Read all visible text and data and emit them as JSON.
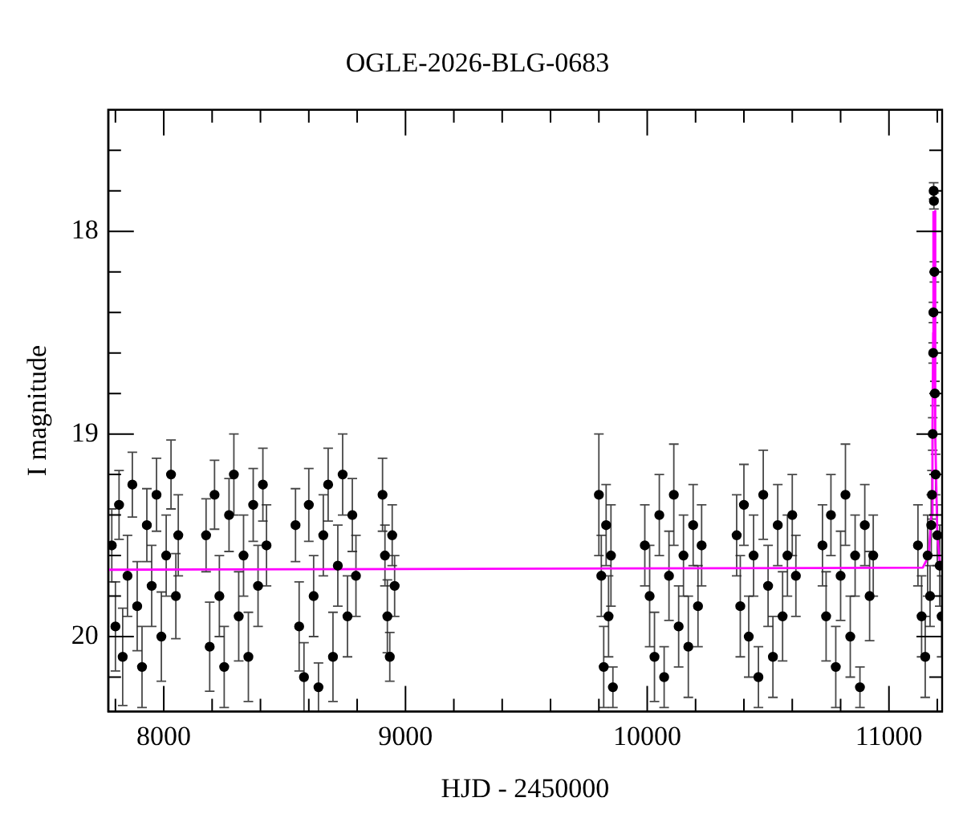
{
  "chart_data": {
    "type": "scatter",
    "title": "OGLE-2026-BLG-0683",
    "xlabel": "HJD - 2450000",
    "ylabel": "I magnitude",
    "xlim": [
      7770,
      11220
    ],
    "ylim": [
      20.37,
      17.4
    ],
    "xticks": [
      {
        "value": 7800,
        "label": null
      },
      8000,
      {
        "value": 8200,
        "label": null
      },
      {
        "value": 8400,
        "label": null
      },
      {
        "value": 8600,
        "label": null
      },
      {
        "value": 8800,
        "label": null
      },
      9000,
      {
        "value": 9200,
        "label": null
      },
      {
        "value": 9400,
        "label": null
      },
      {
        "value": 9600,
        "label": null
      },
      {
        "value": 9800,
        "label": null
      },
      10000,
      {
        "value": 10200,
        "label": null
      },
      {
        "value": 10400,
        "label": null
      },
      {
        "value": 10600,
        "label": null
      },
      {
        "value": 10800,
        "label": null
      },
      11000,
      {
        "value": 11200,
        "label": null
      }
    ],
    "yticks": [
      {
        "value": 17.6,
        "label": null
      },
      {
        "value": 17.8,
        "label": null
      },
      18,
      {
        "value": 18.2,
        "label": null
      },
      {
        "value": 18.4,
        "label": null
      },
      {
        "value": 18.6,
        "label": null
      },
      {
        "value": 18.8,
        "label": null
      },
      19,
      {
        "value": 19.2,
        "label": null
      },
      {
        "value": 19.4,
        "label": null
      },
      {
        "value": 19.6,
        "label": null
      },
      {
        "value": 19.8,
        "label": null
      },
      20,
      {
        "value": 20.2,
        "label": null
      }
    ],
    "series": [
      {
        "type": "scatter",
        "color": "#000000",
        "marker": "circle",
        "x": [
          7785,
          7800,
          7815,
          7830,
          7850,
          7870,
          7890,
          7910,
          7930,
          7950,
          7970,
          7990,
          8010,
          8030,
          8050,
          8060,
          8175,
          8190,
          8210,
          8230,
          8250,
          8270,
          8290,
          8310,
          8330,
          8350,
          8370,
          8390,
          8410,
          8425,
          8545,
          8560,
          8580,
          8600,
          8620,
          8640,
          8660,
          8680,
          8700,
          8720,
          8740,
          8760,
          8780,
          8795,
          8905,
          8915,
          8925,
          8935,
          8945,
          8955,
          9800,
          9810,
          9820,
          9830,
          9840,
          9850,
          9858,
          9990,
          10010,
          10030,
          10050,
          10070,
          10090,
          10110,
          10130,
          10150,
          10170,
          10190,
          10210,
          10225,
          10370,
          10385,
          10400,
          10420,
          10440,
          10460,
          10480,
          10500,
          10520,
          10540,
          10560,
          10580,
          10600,
          10615,
          10725,
          10740,
          10760,
          10780,
          10800,
          10820,
          10840,
          10860,
          10880,
          10900,
          10920,
          10935,
          11120,
          11135,
          11150,
          11160,
          11170,
          11175,
          11178,
          11181,
          11183,
          11184,
          11185,
          11186,
          11188,
          11190,
          11193,
          11200,
          11210,
          11218
        ],
        "values": [
          19.55,
          19.95,
          19.35,
          20.1,
          19.7,
          19.25,
          19.85,
          20.15,
          19.45,
          19.75,
          19.3,
          20.0,
          19.6,
          19.2,
          19.8,
          19.5,
          19.5,
          20.05,
          19.3,
          19.8,
          20.15,
          19.4,
          19.2,
          19.9,
          19.6,
          20.1,
          19.35,
          19.75,
          19.25,
          19.55,
          19.45,
          19.95,
          20.2,
          19.35,
          19.8,
          20.25,
          19.5,
          19.25,
          20.1,
          19.65,
          19.2,
          19.9,
          19.4,
          19.7,
          19.3,
          19.6,
          19.9,
          20.1,
          19.5,
          19.75,
          19.3,
          19.7,
          20.15,
          19.45,
          19.9,
          19.6,
          20.25,
          19.55,
          19.8,
          20.1,
          19.4,
          20.2,
          19.7,
          19.3,
          19.95,
          19.6,
          20.05,
          19.45,
          19.85,
          19.55,
          19.5,
          19.85,
          19.35,
          20.0,
          19.6,
          20.2,
          19.3,
          19.75,
          20.1,
          19.45,
          19.9,
          19.6,
          19.4,
          19.7,
          19.55,
          19.9,
          19.4,
          20.15,
          19.7,
          19.3,
          20.0,
          19.6,
          20.25,
          19.45,
          19.8,
          19.6,
          19.55,
          19.9,
          20.1,
          19.6,
          19.8,
          19.45,
          19.3,
          19.0,
          18.6,
          18.4,
          17.8,
          17.85,
          18.2,
          18.8,
          19.2,
          19.5,
          19.65,
          19.9
        ],
        "errors": [
          0.18,
          0.22,
          0.17,
          0.24,
          0.2,
          0.16,
          0.22,
          0.2,
          0.18,
          0.2,
          0.18,
          0.22,
          0.2,
          0.17,
          0.21,
          0.2,
          0.18,
          0.22,
          0.17,
          0.2,
          0.2,
          0.18,
          0.2,
          0.22,
          0.2,
          0.22,
          0.18,
          0.2,
          0.18,
          0.2,
          0.18,
          0.22,
          0.17,
          0.18,
          0.2,
          0.12,
          0.2,
          0.18,
          0.22,
          0.2,
          0.2,
          0.2,
          0.18,
          0.2,
          0.18,
          0.15,
          0.18,
          0.12,
          0.15,
          0.15,
          0.3,
          0.2,
          0.2,
          0.2,
          0.2,
          0.25,
          0.1,
          0.2,
          0.25,
          0.22,
          0.2,
          0.15,
          0.22,
          0.25,
          0.2,
          0.2,
          0.25,
          0.2,
          0.2,
          0.2,
          0.2,
          0.25,
          0.2,
          0.2,
          0.2,
          0.15,
          0.22,
          0.2,
          0.2,
          0.2,
          0.22,
          0.2,
          0.2,
          0.2,
          0.2,
          0.22,
          0.2,
          0.2,
          0.22,
          0.25,
          0.2,
          0.2,
          0.1,
          0.2,
          0.22,
          0.2,
          0.2,
          0.2,
          0.2,
          0.2,
          0.15,
          0.15,
          0.12,
          0.08,
          0.05,
          0.05,
          0.04,
          0.04,
          0.05,
          0.06,
          0.1,
          0.15,
          0.2,
          0.2
        ]
      },
      {
        "type": "line",
        "color": "#ff00ff",
        "marker": "none",
        "x": [
          7770,
          11140,
          11165,
          11175,
          11180,
          11183,
          11184,
          11185,
          11188,
          11189,
          11190,
          11193,
          11200,
          11210,
          11216
        ],
        "values": [
          19.67,
          19.66,
          19.6,
          19.4,
          19.0,
          18.5,
          17.9,
          null,
          null,
          17.9,
          18.5,
          19.0,
          19.5,
          19.63,
          19.66
        ]
      }
    ]
  }
}
